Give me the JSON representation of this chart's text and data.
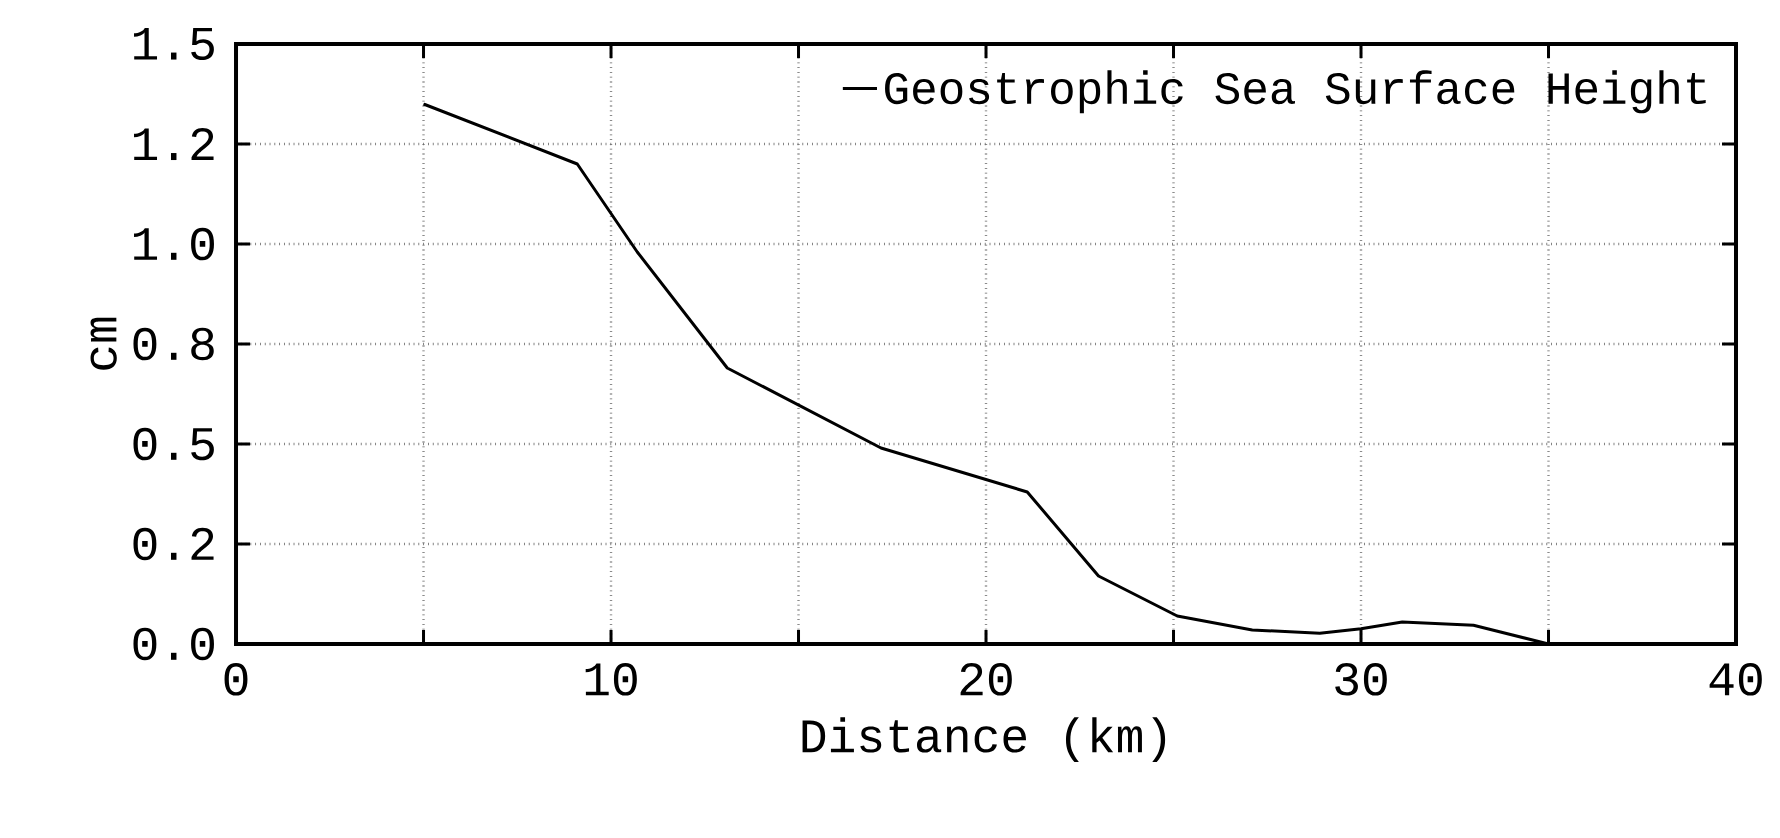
{
  "chart_data": {
    "type": "line",
    "xlabel": "Distance (km)",
    "ylabel": "cm",
    "x": [
      5,
      9.1,
      10.7,
      13.1,
      17.2,
      21.1,
      23.0,
      25.1,
      27.1,
      28.9,
      30.0,
      31.1,
      33.0,
      35.0
    ],
    "series": [
      {
        "name": "Geostrophic Sea Surface Height",
        "color": "#000000",
        "values": [
          1.35,
          1.2,
          0.98,
          0.69,
          0.49,
          0.38,
          0.17,
          0.07,
          0.035,
          0.027,
          0.038,
          0.055,
          0.047,
          0.0
        ]
      }
    ],
    "xlim": [
      0,
      40
    ],
    "ylim": [
      0,
      1.5
    ],
    "xticks": [
      0,
      {
        "value": 5,
        "label": null
      },
      10,
      {
        "value": 15,
        "label": null
      },
      20,
      {
        "value": 25,
        "label": null
      },
      30,
      {
        "value": 35,
        "label": null
      },
      40
    ],
    "yticks": [
      {
        "value": 0,
        "label": "0.0"
      },
      {
        "value": 0.25,
        "label": "0.2"
      },
      {
        "value": 0.5,
        "label": "0.5"
      },
      {
        "value": 0.75,
        "label": "0.8"
      },
      {
        "value": 1.0,
        "label": "1.0"
      },
      {
        "value": 1.25,
        "label": "1.2"
      },
      {
        "value": 1.5,
        "label": "1.5"
      }
    ],
    "grid": true,
    "legend": "top right",
    "marker": "none",
    "line_style": "solid"
  }
}
